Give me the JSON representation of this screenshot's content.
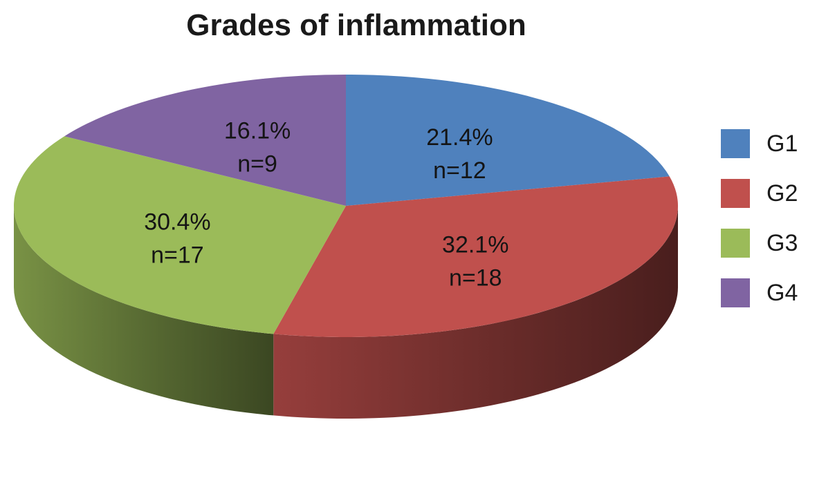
{
  "chart_data": {
    "type": "pie",
    "title": "Grades of inflammation",
    "slices": [
      {
        "name": "G1",
        "percent": 21.4,
        "n": 12,
        "percent_label": "21.4%",
        "n_label": "n=12",
        "color": "#4F81BD"
      },
      {
        "name": "G2",
        "percent": 32.1,
        "n": 18,
        "percent_label": "32.1%",
        "n_label": "n=18",
        "color": "#C0504D"
      },
      {
        "name": "G3",
        "percent": 30.4,
        "n": 17,
        "percent_label": "30.4%",
        "n_label": "n=17",
        "color": "#9BBB59"
      },
      {
        "name": "G4",
        "percent": 16.1,
        "n": 9,
        "percent_label": "16.1%",
        "n_label": "n=9",
        "color": "#8064A2"
      }
    ],
    "start_angle_deg": 0,
    "direction": "clockwise",
    "three_d": true,
    "legend_position": "right"
  }
}
